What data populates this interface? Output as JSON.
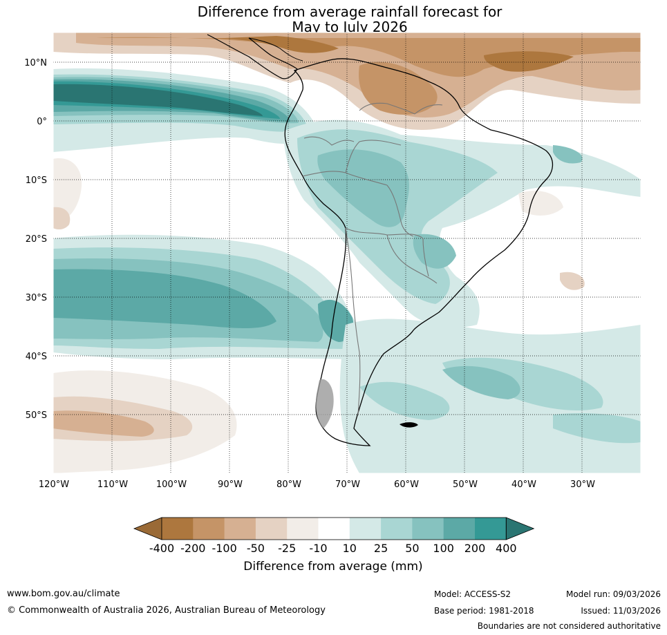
{
  "title_line1": "Difference from average rainfall forecast for",
  "title_line2": "May to July 2026",
  "lat_labels": [
    "10°N",
    "0°",
    "10°S",
    "20°S",
    "30°S",
    "40°S",
    "50°S"
  ],
  "lon_labels": [
    "120°W",
    "110°W",
    "100°W",
    "90°W",
    "80°W",
    "70°W",
    "60°W",
    "50°W",
    "40°W",
    "30°W"
  ],
  "colorbar": {
    "ticks": [
      "-400",
      "-200",
      "-100",
      "-50",
      "-25",
      "-10",
      "10",
      "25",
      "50",
      "100",
      "200",
      "400"
    ],
    "colors": [
      "#9a6a36",
      "#ad773e",
      "#c59467",
      "#d6b092",
      "#e5d2c3",
      "#f2ede8",
      "#ffffff",
      "#d4e9e7",
      "#a9d6d3",
      "#86c2bf",
      "#5ca9a6",
      "#349995",
      "#2a7572"
    ],
    "label": "Difference from average (mm)"
  },
  "footer": {
    "url": "www.bom.gov.au/climate",
    "copyright": "© Commonwealth of Australia 2026, Australian Bureau of Meteorology",
    "model": "Model: ACCESS-S2",
    "base_period": "Base period: 1981-2018",
    "model_run": "Model run: 09/03/2026",
    "issued": "Issued: 11/03/2026",
    "disclaimer": "Boundaries are not considered authoritative"
  }
}
